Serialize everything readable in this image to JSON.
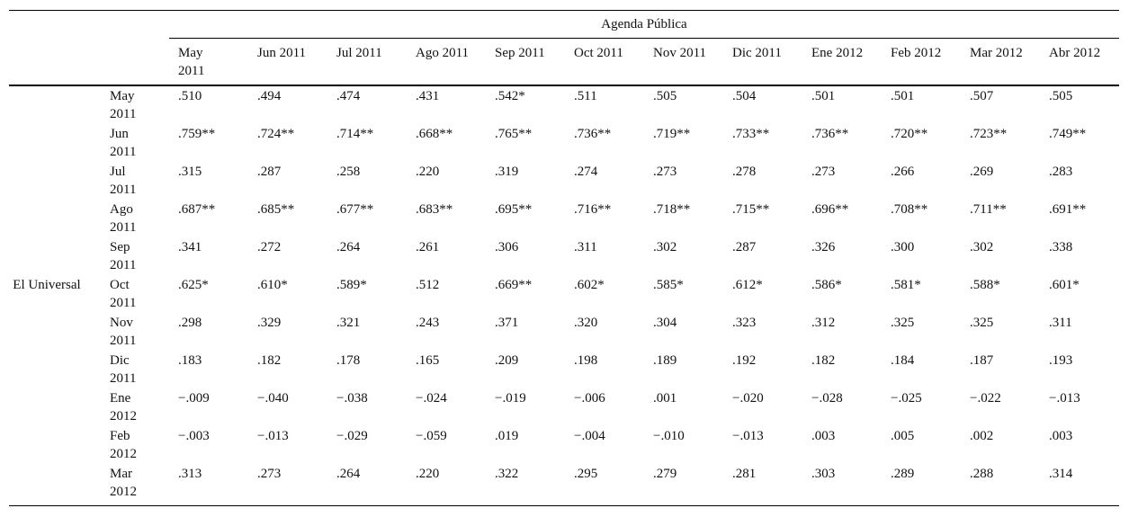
{
  "header": {
    "group": "Agenda Pública",
    "columns": [
      "May 2011",
      "Jun 2011",
      "Jul 2011",
      "Ago 2011",
      "Sep 2011",
      "Oct 2011",
      "Nov 2011",
      "Dic 2011",
      "Ene 2012",
      "Feb 2012",
      "Mar 2012",
      "Abr 2012"
    ]
  },
  "row_group": "El Universal",
  "rows": [
    {
      "label": "May 2011",
      "values": [
        ".510",
        ".494",
        ".474",
        ".431",
        ".542*",
        ".511",
        ".505",
        ".504",
        ".501",
        ".501",
        ".507",
        ".505"
      ]
    },
    {
      "label": "Jun 2011",
      "values": [
        ".759**",
        ".724**",
        ".714**",
        ".668**",
        ".765**",
        ".736**",
        ".719**",
        ".733**",
        ".736**",
        ".720**",
        ".723**",
        ".749**"
      ]
    },
    {
      "label": "Jul 2011",
      "values": [
        ".315",
        ".287",
        ".258",
        ".220",
        ".319",
        ".274",
        ".273",
        ".278",
        ".273",
        ".266",
        ".269",
        ".283"
      ]
    },
    {
      "label": "Ago 2011",
      "values": [
        ".687**",
        ".685**",
        ".677**",
        ".683**",
        ".695**",
        ".716**",
        ".718**",
        ".715**",
        ".696**",
        ".708**",
        ".711**",
        ".691**"
      ]
    },
    {
      "label": "Sep 2011",
      "values": [
        ".341",
        ".272",
        ".264",
        ".261",
        ".306",
        ".311",
        ".302",
        ".287",
        ".326",
        ".300",
        ".302",
        ".338"
      ]
    },
    {
      "label": "Oct 2011",
      "values": [
        ".625*",
        ".610*",
        ".589*",
        ".512",
        ".669**",
        ".602*",
        ".585*",
        ".612*",
        ".586*",
        ".581*",
        ".588*",
        ".601*"
      ]
    },
    {
      "label": "Nov 2011",
      "values": [
        ".298",
        ".329",
        ".321",
        ".243",
        ".371",
        ".320",
        ".304",
        ".323",
        ".312",
        ".325",
        ".325",
        ".311"
      ]
    },
    {
      "label": "Dic 2011",
      "values": [
        ".183",
        ".182",
        ".178",
        ".165",
        ".209",
        ".198",
        ".189",
        ".192",
        ".182",
        ".184",
        ".187",
        ".193"
      ]
    },
    {
      "label": "Ene 2012",
      "values": [
        "−.009",
        "−.040",
        "−.038",
        "−.024",
        "−.019",
        "−.006",
        ".001",
        "−.020",
        "−.028",
        "−.025",
        "−.022",
        "−.013"
      ]
    },
    {
      "label": "Feb 2012",
      "values": [
        "−.003",
        "−.013",
        "−.029",
        "−.059",
        ".019",
        "−.004",
        "−.010",
        "−.013",
        ".003",
        ".005",
        ".002",
        ".003"
      ]
    },
    {
      "label": "Mar 2012",
      "values": [
        ".313",
        ".273",
        ".264",
        ".220",
        ".322",
        ".295",
        ".279",
        ".281",
        ".303",
        ".289",
        ".288",
        ".314"
      ]
    }
  ]
}
